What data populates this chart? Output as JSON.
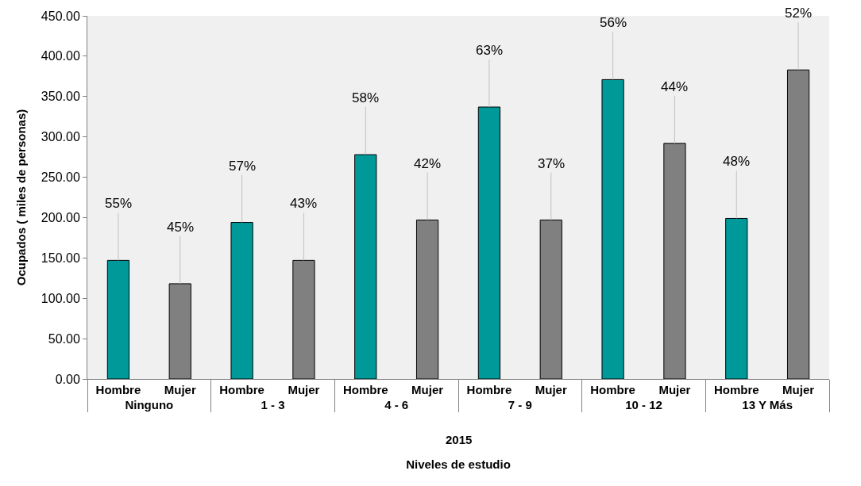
{
  "chart_data": {
    "type": "bar",
    "ylabel": "Ocupados ( miles de personas)",
    "xlabel": "Niveles de estudio",
    "annotations": [
      "2015",
      {
        "text": "55%",
        "y": 147
      },
      {
        "text": "45%",
        "y": 118
      },
      {
        "text": "57%",
        "y": 194
      },
      {
        "text": "43%",
        "y": 147
      },
      {
        "text": "58%",
        "y": 278
      },
      {
        "text": "42%",
        "y": 197
      },
      {
        "text": "63%",
        "y": 337
      },
      {
        "text": "37%",
        "y": 197
      },
      {
        "text": "56%",
        "y": 371
      },
      {
        "text": "44%",
        "y": 292
      },
      {
        "text": "48%",
        "y": 199
      },
      {
        "text": "52%",
        "y": 383
      }
    ],
    "categories": [
      "Ninguno",
      "1 - 3",
      "4 - 6",
      "7 - 9",
      "10 - 12",
      "13 Y Más"
    ],
    "series": [
      {
        "name": "Hombre",
        "color": "#009999",
        "values": [
          147,
          194,
          278,
          337,
          371,
          199
        ]
      },
      {
        "name": "Mujer",
        "color": "#808080",
        "values": [
          118,
          147,
          197,
          197,
          292,
          383
        ]
      }
    ],
    "ylim": [
      0,
      450
    ],
    "yticks": [
      {
        "value": 0,
        "label": "0.00"
      },
      {
        "value": 50,
        "label": "50.00"
      },
      {
        "value": 100,
        "label": "100.00"
      },
      {
        "value": 150,
        "label": "150.00"
      },
      {
        "value": 200,
        "label": "200.00"
      },
      {
        "value": 250,
        "label": "250.00"
      },
      {
        "value": 300,
        "label": "300.00"
      },
      {
        "value": 350,
        "label": "350.00"
      },
      {
        "value": 400,
        "label": "400.00"
      },
      {
        "value": 450,
        "label": "450.00"
      }
    ],
    "grid": false
  }
}
